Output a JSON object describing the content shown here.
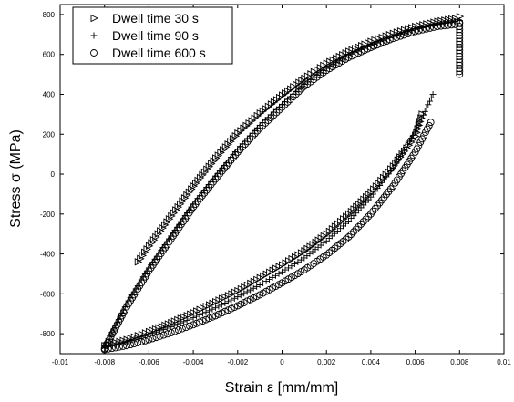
{
  "chart_data": {
    "type": "scatter",
    "title": "",
    "xlabel": "Strain ε [mm/mm]",
    "ylabel": "Stress σ (MPa)",
    "xlim": [
      -0.01,
      0.01
    ],
    "ylim": [
      -900,
      850
    ],
    "xticks": [
      -0.01,
      -0.008,
      -0.006,
      -0.004,
      -0.002,
      0,
      0.002,
      0.004,
      0.006,
      0.008,
      0.01
    ],
    "xtick_labels": [
      "-0.01",
      "-0.008",
      "-0.006",
      "-0.004",
      "-0.002",
      "0",
      "0.002",
      "0.004",
      "0.006",
      "0.008",
      "0.01"
    ],
    "yticks": [
      -800,
      -600,
      -400,
      -200,
      0,
      200,
      400,
      600,
      800
    ],
    "ytick_labels": [
      "-800",
      "-600",
      "-400",
      "-200",
      "0",
      "200",
      "400",
      "600",
      "800"
    ],
    "grid": false,
    "legend_position": "top-left",
    "series": [
      {
        "name": "Dwell time 30 s",
        "marker": "triangle-right",
        "color": "#000000",
        "segments": [
          {
            "x": [
              -0.0065,
              -0.006,
              -0.005,
              -0.004,
              -0.003,
              -0.002,
              -0.001,
              0,
              0.001,
              0.002,
              0.003,
              0.004,
              0.005,
              0.006,
              0.007,
              0.0078,
              0.008
            ],
            "y": [
              -440,
              -360,
              -210,
              -60,
              80,
              205,
              305,
              395,
              480,
              555,
              615,
              665,
              705,
              740,
              765,
              780,
              790
            ]
          },
          {
            "x": [
              -0.008,
              -0.007,
              -0.006,
              -0.005,
              -0.004,
              -0.003,
              -0.002,
              -0.001,
              0,
              0.001,
              0.002,
              0.003,
              0.004,
              0.005,
              0.006,
              0.0063
            ],
            "y": [
              -860,
              -830,
              -790,
              -745,
              -695,
              -640,
              -585,
              -520,
              -455,
              -385,
              -300,
              -200,
              -90,
              40,
              190,
              300
            ]
          }
        ]
      },
      {
        "name": "Dwell time 90 s",
        "marker": "plus",
        "color": "#000000",
        "segments": [
          {
            "x": [
              -0.008,
              -0.0075,
              -0.007,
              -0.006,
              -0.005,
              -0.004,
              -0.003,
              -0.002,
              -0.001,
              0,
              0.001,
              0.002,
              0.003,
              0.004,
              0.005,
              0.006,
              0.007,
              0.0078,
              0.008
            ],
            "y": [
              -860,
              -760,
              -650,
              -470,
              -310,
              -150,
              -10,
              125,
              245,
              350,
              450,
              530,
              595,
              645,
              690,
              725,
              750,
              765,
              770
            ]
          },
          {
            "x": [
              -0.008,
              -0.007,
              -0.006,
              -0.005,
              -0.004,
              -0.003,
              -0.002,
              -0.001,
              0,
              0.001,
              0.002,
              0.003,
              0.004,
              0.005,
              0.006,
              0.0068
            ],
            "y": [
              -870,
              -840,
              -805,
              -765,
              -720,
              -670,
              -615,
              -555,
              -490,
              -420,
              -335,
              -235,
              -115,
              30,
              210,
              400
            ]
          }
        ]
      },
      {
        "name": "Dwell time 600 s",
        "marker": "circle",
        "color": "#000000",
        "segments": [
          {
            "x": [
              -0.008,
              -0.0075,
              -0.007,
              -0.006,
              -0.005,
              -0.004,
              -0.003,
              -0.002,
              -0.001,
              0,
              0.001,
              0.002,
              0.003,
              0.004,
              0.005,
              0.006,
              0.007,
              0.0078,
              0.008
            ],
            "y": [
              -875,
              -770,
              -665,
              -485,
              -325,
              -165,
              -25,
              110,
              230,
              335,
              440,
              520,
              585,
              635,
              680,
              715,
              740,
              750,
              755
            ]
          },
          {
            "x": [
              -0.008,
              -0.007,
              -0.006,
              -0.005,
              -0.004,
              -0.003,
              -0.002,
              -0.001,
              0,
              0.001,
              0.002,
              0.003,
              0.004,
              0.005,
              0.006,
              0.0067
            ],
            "y": [
              -880,
              -860,
              -830,
              -795,
              -755,
              -710,
              -660,
              -605,
              -545,
              -480,
              -405,
              -315,
              -200,
              -60,
              110,
              260
            ]
          },
          {
            "x": [
              0.008,
              0.008,
              0.008,
              0.008,
              0.008,
              0.008,
              0.008,
              0.008,
              0.008,
              0.008
            ],
            "y": [
              500,
              530,
              560,
              590,
              620,
              650,
              680,
              710,
              740,
              760
            ]
          }
        ]
      }
    ]
  }
}
